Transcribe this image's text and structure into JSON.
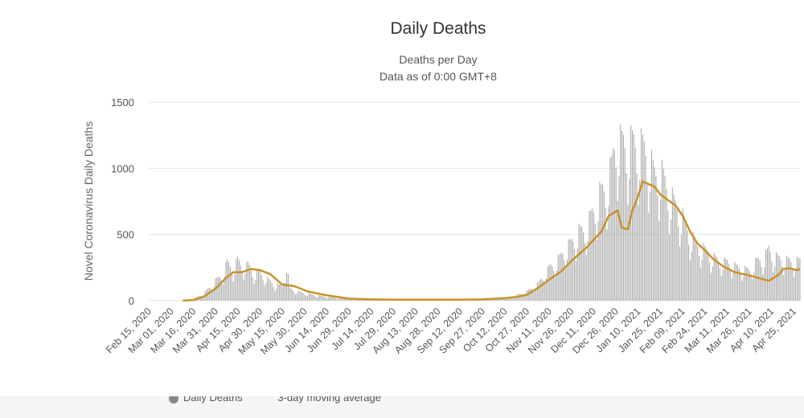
{
  "chart_data": {
    "type": "bar",
    "title": "Daily Deaths",
    "subtitle_lines": [
      "Deaths per Day",
      "Data as of 0:00 GMT+8"
    ],
    "ylabel": "Novel Coronavirus Daily Deaths",
    "ylim": [
      0,
      1500
    ],
    "yticks": [
      0,
      500,
      1000,
      1500
    ],
    "x_start": "2020-02-15",
    "x_end": "2021-04-29",
    "xtick_labels": [
      "Feb 15, 2020",
      "Mar 01, 2020",
      "Mar 16, 2020",
      "Mar 31, 2020",
      "Apr 15, 2020",
      "Apr 30, 2020",
      "May 15, 2020",
      "May 30, 2020",
      "Jun 14, 2020",
      "Jun 29, 2020",
      "Jul 14, 2020",
      "Jul 29, 2020",
      "Aug 13, 2020",
      "Aug 28, 2020",
      "Sep 12, 2020",
      "Sep 27, 2020",
      "Oct 12, 2020",
      "Oct 27, 2020",
      "Nov 11, 2020",
      "Nov 26, 2020",
      "Dec 11, 2020",
      "Dec 26, 2020",
      "Jan 10, 2021",
      "Jan 25, 2021",
      "Feb 09, 2021",
      "Feb 24, 2021",
      "Mar 11, 2021",
      "Mar 26, 2021",
      "Apr 10, 2021",
      "Apr 25, 2021"
    ],
    "grid": true,
    "series": [
      {
        "name": "Daily Deaths",
        "kind": "bar",
        "color": "#a6a6a6",
        "points": [
          [
            "2020-02-15",
            0
          ],
          [
            "2020-03-01",
            0
          ],
          [
            "2020-03-09",
            2
          ],
          [
            "2020-03-16",
            12
          ],
          [
            "2020-03-23",
            55
          ],
          [
            "2020-03-28",
            110
          ],
          [
            "2020-03-31",
            150
          ],
          [
            "2020-04-05",
            200
          ],
          [
            "2020-04-08",
            290
          ],
          [
            "2020-04-12",
            230
          ],
          [
            "2020-04-15",
            310
          ],
          [
            "2020-04-18",
            250
          ],
          [
            "2020-04-22",
            270
          ],
          [
            "2020-04-26",
            200
          ],
          [
            "2020-04-30",
            210
          ],
          [
            "2020-05-05",
            160
          ],
          [
            "2020-05-10",
            120
          ],
          [
            "2020-05-15",
            110
          ],
          [
            "2020-05-18",
            270
          ],
          [
            "2020-05-20",
            90
          ],
          [
            "2020-05-25",
            70
          ],
          [
            "2020-05-30",
            55
          ],
          [
            "2020-06-07",
            40
          ],
          [
            "2020-06-14",
            30
          ],
          [
            "2020-06-29",
            15
          ],
          [
            "2020-07-14",
            10
          ],
          [
            "2020-07-29",
            9
          ],
          [
            "2020-08-13",
            7
          ],
          [
            "2020-08-28",
            7
          ],
          [
            "2020-09-12",
            7
          ],
          [
            "2020-09-27",
            9
          ],
          [
            "2020-10-05",
            15
          ],
          [
            "2020-10-12",
            20
          ],
          [
            "2020-10-20",
            40
          ],
          [
            "2020-10-27",
            70
          ],
          [
            "2020-11-03",
            120
          ],
          [
            "2020-11-08",
            200
          ],
          [
            "2020-11-11",
            250
          ],
          [
            "2020-11-16",
            290
          ],
          [
            "2020-11-20",
            360
          ],
          [
            "2020-11-26",
            440
          ],
          [
            "2020-12-01",
            520
          ],
          [
            "2020-12-05",
            530
          ],
          [
            "2020-12-11",
            680
          ],
          [
            "2020-12-15",
            800
          ],
          [
            "2020-12-20",
            870
          ],
          [
            "2020-12-23",
            1010
          ],
          [
            "2020-12-26",
            1230
          ],
          [
            "2020-12-29",
            1190
          ],
          [
            "2021-01-03",
            1170
          ],
          [
            "2021-01-06",
            1190
          ],
          [
            "2021-01-10",
            1170
          ],
          [
            "2021-01-13",
            1160
          ],
          [
            "2021-01-18",
            1050
          ],
          [
            "2021-01-21",
            950
          ],
          [
            "2021-01-25",
            980
          ],
          [
            "2021-01-30",
            830
          ],
          [
            "2021-02-04",
            720
          ],
          [
            "2021-02-09",
            620
          ],
          [
            "2021-02-14",
            490
          ],
          [
            "2021-02-19",
            420
          ],
          [
            "2021-02-24",
            380
          ],
          [
            "2021-03-01",
            330
          ],
          [
            "2021-03-06",
            300
          ],
          [
            "2021-03-11",
            290
          ],
          [
            "2021-03-16",
            260
          ],
          [
            "2021-03-21",
            240
          ],
          [
            "2021-03-26",
            230
          ],
          [
            "2021-03-31",
            300
          ],
          [
            "2021-04-05",
            320
          ],
          [
            "2021-04-08",
            390
          ],
          [
            "2021-04-12",
            330
          ],
          [
            "2021-04-18",
            310
          ],
          [
            "2021-04-25",
            290
          ],
          [
            "2021-04-29",
            300
          ]
        ]
      },
      {
        "name": "3-day moving average",
        "kind": "line",
        "color": "#c8932a",
        "points": [
          [
            "2020-03-09",
            0
          ],
          [
            "2020-03-16",
            5
          ],
          [
            "2020-03-23",
            30
          ],
          [
            "2020-03-31",
            90
          ],
          [
            "2020-04-07",
            170
          ],
          [
            "2020-04-12",
            215
          ],
          [
            "2020-04-18",
            215
          ],
          [
            "2020-04-24",
            240
          ],
          [
            "2020-04-30",
            230
          ],
          [
            "2020-05-07",
            200
          ],
          [
            "2020-05-15",
            120
          ],
          [
            "2020-05-23",
            110
          ],
          [
            "2020-06-01",
            70
          ],
          [
            "2020-06-14",
            40
          ],
          [
            "2020-06-29",
            15
          ],
          [
            "2020-07-14",
            10
          ],
          [
            "2020-07-29",
            8
          ],
          [
            "2020-08-13",
            7
          ],
          [
            "2020-08-28",
            7
          ],
          [
            "2020-09-12",
            8
          ],
          [
            "2020-09-27",
            10
          ],
          [
            "2020-10-12",
            18
          ],
          [
            "2020-10-21",
            30
          ],
          [
            "2020-10-27",
            45
          ],
          [
            "2020-11-04",
            100
          ],
          [
            "2020-11-11",
            160
          ],
          [
            "2020-11-19",
            220
          ],
          [
            "2020-11-26",
            300
          ],
          [
            "2020-12-06",
            400
          ],
          [
            "2020-12-16",
            520
          ],
          [
            "2020-12-21",
            640
          ],
          [
            "2020-12-27",
            680
          ],
          [
            "2020-12-30",
            550
          ],
          [
            "2021-01-03",
            540
          ],
          [
            "2021-01-06",
            680
          ],
          [
            "2021-01-09",
            760
          ],
          [
            "2021-01-13",
            900
          ],
          [
            "2021-01-17",
            880
          ],
          [
            "2021-01-21",
            860
          ],
          [
            "2021-01-25",
            800
          ],
          [
            "2021-01-30",
            760
          ],
          [
            "2021-02-04",
            720
          ],
          [
            "2021-02-09",
            640
          ],
          [
            "2021-02-14",
            520
          ],
          [
            "2021-02-19",
            430
          ],
          [
            "2021-02-24",
            380
          ],
          [
            "2021-03-01",
            320
          ],
          [
            "2021-03-08",
            260
          ],
          [
            "2021-03-16",
            215
          ],
          [
            "2021-03-26",
            190
          ],
          [
            "2021-04-03",
            165
          ],
          [
            "2021-04-08",
            150
          ],
          [
            "2021-04-14",
            190
          ],
          [
            "2021-04-18",
            240
          ],
          [
            "2021-04-22",
            245
          ],
          [
            "2021-04-27",
            230
          ],
          [
            "2021-04-29",
            240
          ]
        ]
      }
    ]
  }
}
